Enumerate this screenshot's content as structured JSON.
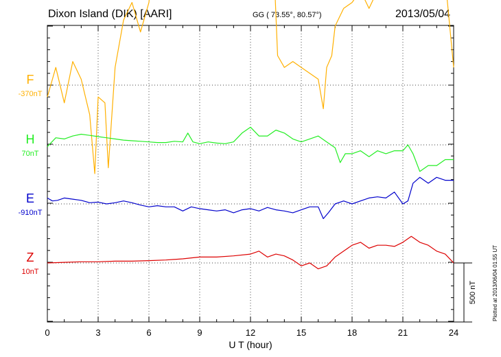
{
  "header": {
    "title": "Dixon Island (DIK)  [AARI]",
    "coords": "GG ( 73.55°,  80.57°)",
    "date": "2013/05/04"
  },
  "footer": {
    "plotted": "Plotted at 2013/06/04 01:55 UT"
  },
  "chart_data": {
    "type": "line",
    "xlabel": "U T (hour)",
    "xlim": [
      0,
      24
    ],
    "xticks": [
      0,
      3,
      6,
      9,
      12,
      15,
      18,
      21,
      24
    ],
    "ylim": [
      -4,
      6
    ],
    "grid": true,
    "scale_bar": {
      "label": "500 nT",
      "value": 500
    },
    "series": [
      {
        "name": "F",
        "offset_label": "-370nT",
        "color": "#ffb000",
        "x": [
          0,
          0.5,
          1,
          1.5,
          2,
          2.5,
          2.8,
          3,
          3.4,
          3.6,
          4,
          4.5,
          5,
          5.5,
          6,
          6.3,
          6.6,
          7,
          7.5,
          8,
          8.5,
          9,
          9.5,
          10,
          10.5,
          11,
          11.5,
          12,
          12.4,
          12.7,
          13,
          13.4,
          13.6,
          14,
          14.5,
          15,
          15.5,
          16,
          16.3,
          16.5,
          16.8,
          17,
          17.5,
          18,
          18.5,
          19,
          19.5,
          20,
          20.5,
          21,
          21.5,
          22,
          22.5,
          23,
          23.5,
          24
        ],
        "y": [
          -0.2,
          0.3,
          -0.3,
          0.4,
          0.1,
          -0.5,
          -1.5,
          -0.2,
          -0.3,
          -1.4,
          0.3,
          1.1,
          1.4,
          0.9,
          1.4,
          2.3,
          2.2,
          2.1,
          2.5,
          2.2,
          2.1,
          2.3,
          2.2,
          2.4,
          2.2,
          2.3,
          2.1,
          2.2,
          2.0,
          2.2,
          2.1,
          1.9,
          0.5,
          0.3,
          0.4,
          0.3,
          0.2,
          0.1,
          -0.4,
          0.3,
          0.5,
          1.0,
          1.3,
          1.4,
          1.6,
          1.3,
          1.6,
          1.8,
          1.7,
          1.8,
          2.0,
          1.5,
          1.7,
          1.6,
          1.8,
          0.3
        ]
      },
      {
        "name": "H",
        "offset_label": "70nT",
        "color": "#22ee22",
        "x": [
          0,
          0.5,
          1,
          1.5,
          2,
          2.5,
          3,
          3.5,
          4,
          4.5,
          5,
          5.5,
          6,
          6.5,
          7,
          7.5,
          8,
          8.3,
          8.6,
          9,
          9.5,
          10,
          10.5,
          11,
          11.5,
          12,
          12.5,
          13,
          13.5,
          14,
          14.5,
          15,
          15.5,
          16,
          16.5,
          17,
          17.3,
          17.6,
          18,
          18.5,
          19,
          19.5,
          20,
          20.5,
          21,
          21.3,
          21.6,
          22,
          22.5,
          23,
          23.5,
          24
        ],
        "y": [
          -0.03,
          0.12,
          0.1,
          0.15,
          0.18,
          0.16,
          0.14,
          0.12,
          0.1,
          0.08,
          0.07,
          0.06,
          0.05,
          0.04,
          0.04,
          0.06,
          0.05,
          0.2,
          0.05,
          0.02,
          0.05,
          0.03,
          0.02,
          0.05,
          0.2,
          0.3,
          0.15,
          0.15,
          0.25,
          0.2,
          0.1,
          0.05,
          0.1,
          0.15,
          0.05,
          -0.05,
          -0.3,
          -0.15,
          -0.15,
          -0.1,
          -0.2,
          -0.1,
          -0.15,
          -0.1,
          -0.1,
          0.0,
          -0.15,
          -0.45,
          -0.35,
          -0.35,
          -0.25,
          -0.25
        ]
      },
      {
        "name": "E",
        "offset_label": "-910nT",
        "color": "#0000cc",
        "x": [
          0,
          0.3,
          0.6,
          1,
          1.5,
          2,
          2.5,
          3,
          3.5,
          4,
          4.5,
          5,
          5.5,
          6,
          6.5,
          7,
          7.5,
          8,
          8.5,
          9,
          9.5,
          10,
          10.5,
          11,
          11.5,
          12,
          12.5,
          13,
          13.5,
          14,
          14.5,
          15,
          15.5,
          16,
          16.3,
          16.6,
          17,
          17.5,
          18,
          18.5,
          19,
          19.5,
          20,
          20.5,
          21,
          21.3,
          21.6,
          22,
          22.5,
          23,
          23.5,
          24
        ],
        "y": [
          0.1,
          0.05,
          0.06,
          0.1,
          0.08,
          0.06,
          0.02,
          0.03,
          0.0,
          0.02,
          0.05,
          0.02,
          -0.02,
          -0.05,
          -0.03,
          -0.05,
          -0.05,
          -0.12,
          -0.05,
          -0.08,
          -0.1,
          -0.12,
          -0.1,
          -0.15,
          -0.1,
          -0.08,
          -0.12,
          -0.06,
          -0.1,
          -0.12,
          -0.15,
          -0.1,
          -0.05,
          -0.05,
          -0.25,
          -0.15,
          0.0,
          0.05,
          0.0,
          0.05,
          0.1,
          0.12,
          0.1,
          0.2,
          0.0,
          0.05,
          0.35,
          0.45,
          0.35,
          0.45,
          0.4,
          0.4
        ]
      },
      {
        "name": "Z",
        "offset_label": "10nT",
        "color": "#dd0000",
        "x": [
          0,
          1,
          2,
          3,
          4,
          5,
          6,
          7,
          8,
          9,
          10,
          11,
          12,
          12.5,
          13,
          13.5,
          14,
          14.5,
          15,
          15.5,
          16,
          16.5,
          17,
          17.5,
          18,
          18.5,
          19,
          19.5,
          20,
          20.5,
          21,
          21.5,
          22,
          22.5,
          23,
          23.5,
          24
        ],
        "y": [
          0.0,
          0.01,
          0.02,
          0.02,
          0.03,
          0.03,
          0.04,
          0.05,
          0.07,
          0.1,
          0.1,
          0.12,
          0.15,
          0.2,
          0.1,
          0.15,
          0.12,
          0.05,
          -0.05,
          0.0,
          -0.1,
          -0.05,
          0.1,
          0.2,
          0.3,
          0.35,
          0.25,
          0.3,
          0.3,
          0.28,
          0.35,
          0.45,
          0.35,
          0.3,
          0.2,
          0.15,
          0.0
        ]
      }
    ]
  }
}
